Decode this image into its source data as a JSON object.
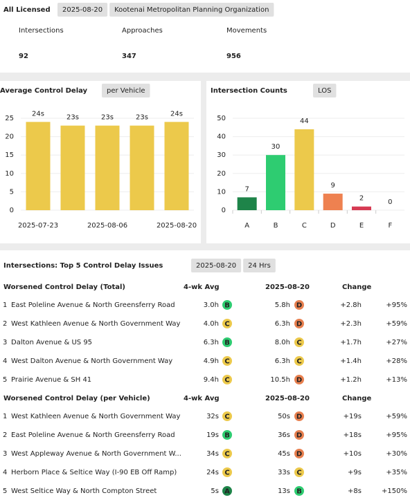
{
  "header": {
    "title": "All Licensed",
    "tags": [
      "2025-08-20",
      "Kootenai Metropolitan Planning Organization"
    ]
  },
  "stats": [
    {
      "label": "Intersections",
      "value": 92
    },
    {
      "label": "Approaches",
      "value": 347
    },
    {
      "label": "Movements",
      "value": 956
    }
  ],
  "charts": [
    {
      "type": "bar",
      "title": "Average Control Delay",
      "tag": "per Vehicle",
      "categories": [
        "2025-07-23",
        null,
        "2025-08-06",
        null,
        "2025-08-20"
      ],
      "values": [
        24,
        23,
        23,
        23,
        24
      ],
      "value_labels": [
        "24s",
        "23s",
        "23s",
        "23s",
        "24s"
      ],
      "color": "#ecc94b",
      "ylim": [
        0,
        25
      ],
      "yticks": [
        0,
        5,
        10,
        15,
        20,
        25
      ],
      "grid": true
    },
    {
      "type": "bar",
      "title": "Intersection Counts",
      "tag": "LOS",
      "categories": [
        "A",
        "B",
        "C",
        "D",
        "E",
        "F"
      ],
      "values": [
        7,
        30,
        44,
        9,
        2,
        0
      ],
      "colors": [
        "#1e8449",
        "#2ecc71",
        "#ecc94b",
        "#ee8150",
        "#d63a53",
        "#999999"
      ],
      "ylim": [
        0,
        50
      ],
      "yticks": [
        0,
        10,
        20,
        30,
        40,
        50
      ],
      "grid": true
    }
  ],
  "table": {
    "title": "Intersections: Top 5 Control Delay Issues",
    "tags": [
      "2025-08-20",
      "24 Hrs"
    ],
    "sections": [
      {
        "title": "Worsened Control Delay (Total)",
        "columns": [
          "4-wk Avg",
          "2025-08-20",
          "Change"
        ],
        "rows": [
          [
            "1",
            "East Poleline Avenue & North Greensferry Road",
            "3.0h",
            "B",
            "5.8h",
            "D",
            "+2.8h",
            "+95%"
          ],
          [
            "2",
            "West Kathleen Avenue & North Government Way",
            "4.0h",
            "C",
            "6.3h",
            "D",
            "+2.3h",
            "+59%"
          ],
          [
            "3",
            "Dalton Avenue & US 95",
            "6.3h",
            "B",
            "8.0h",
            "C",
            "+1.7h",
            "+27%"
          ],
          [
            "4",
            "West Dalton Avenue & North Government Way",
            "4.9h",
            "C",
            "6.3h",
            "C",
            "+1.4h",
            "+28%"
          ],
          [
            "5",
            "Prairie Avenue & SH 41",
            "9.4h",
            "C",
            "10.5h",
            "D",
            "+1.2h",
            "+13%"
          ]
        ]
      },
      {
        "title": "Worsened Control Delay (per Vehicle)",
        "columns": [
          "4-wk Avg",
          "2025-08-20",
          "Change"
        ],
        "rows": [
          [
            "1",
            "West Kathleen Avenue & North Government Way",
            "32s",
            "C",
            "50s",
            "D",
            "+19s",
            "+59%"
          ],
          [
            "2",
            "East Poleline Avenue & North Greensferry Road",
            "19s",
            "B",
            "36s",
            "D",
            "+18s",
            "+95%"
          ],
          [
            "3",
            "West Appleway Avenue & North Government W...",
            "34s",
            "C",
            "45s",
            "D",
            "+10s",
            "+30%"
          ],
          [
            "4",
            "Herborn Place & Seltice Way (I-90 EB Off Ramp)",
            "24s",
            "C",
            "33s",
            "C",
            "+9s",
            "+35%"
          ],
          [
            "5",
            "West Seltice Way & North Compton Street",
            "5s",
            "A",
            "13s",
            "B",
            "+8s",
            "+150%"
          ]
        ]
      }
    ]
  },
  "badge_colors": {
    "A": "#1e8449",
    "B": "#2ecc71",
    "C": "#ecc94b",
    "D": "#e8804f"
  }
}
